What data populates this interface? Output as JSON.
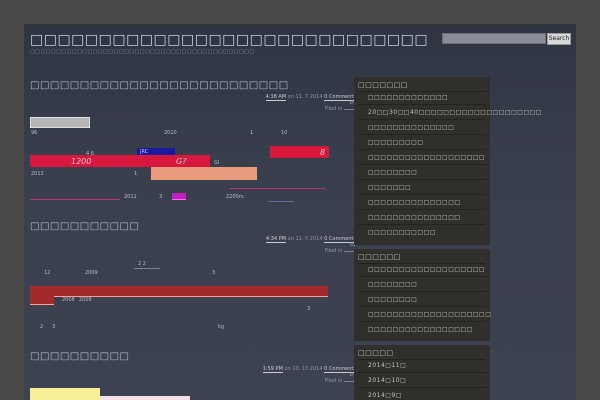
{
  "site": {
    "title": "□□□□□□□□□□□□□□□□□□□□□□□□□□□□□",
    "description": "□□□□□□□□□□□□□□□□□□□□□□□□□□□□□□□□□□□□□□□□□□□"
  },
  "search": {
    "button_label": "Search",
    "placeholder": ""
  },
  "posts": [
    {
      "title": "□□□□□□□□□□□□□□□□□□□□□□□□□□",
      "time": "4:38 AM",
      "date_text": "on 11. 7 2014",
      "comments": "0 Comments",
      "by": "By",
      "filed": "Filed in",
      "texts": [
        "96",
        "2010",
        "1",
        "10",
        "4 6",
        "JRC",
        "1200",
        "G?",
        "8",
        "2012",
        "1",
        "GI",
        "2011",
        "3",
        "2200m"
      ]
    },
    {
      "title": "□□□□□□□□□□□",
      "time": "4:34 PM",
      "date_text": "on 11. 5 2014",
      "comments": "0 Comments",
      "by": "By",
      "filed": "Filed in",
      "texts": [
        "2 2",
        "12",
        "2009",
        "3",
        "2008",
        "2009",
        "3",
        "2",
        "3",
        "kg"
      ]
    },
    {
      "title": "□□□□□□□□□□",
      "time": "1:59 PM",
      "date_text": "on 10. 13 2014",
      "comments": "0 Comments",
      "by": "By",
      "filed": "Filed in"
    }
  ],
  "sidebar": {
    "widgets": [
      {
        "title": "□□□□□□□",
        "items": [
          "□□□□□□□□□□□□□",
          "20□□30□□40□□□□□□□□□□□□□□□□□□□□",
          "□□□□□□□□□□□□□□",
          "□□□□□□□□□",
          "□□□□□□□□□□□□□□□□□□□",
          "□□□□□□□□",
          "□□□□□□□",
          "□□□□□□□□□□□□□□□",
          "□□□□□□□□□□□□□□□",
          "□□□□□□□□□□□"
        ]
      },
      {
        "title": "□□□□□□",
        "items": [
          "□□□□□□□□□□□□□□□□□□□",
          "□□□□□□□□",
          "□□□□□□□□",
          "□□□□□□□□□□□□□□□□□□□□",
          "□□□□□□□□□□□□□□□□□"
        ]
      },
      {
        "title": "□□□□□",
        "items": [
          "2014□11□",
          "2014□10□",
          "2014□9□"
        ]
      }
    ]
  },
  "colors": {
    "accent_red": "#d8173f",
    "salmon": "#e89a7c",
    "navy": "#1a1a9a",
    "magenta": "#c020c0",
    "dark_red": "#a32a2a",
    "yellow": "#f7ef9a"
  }
}
